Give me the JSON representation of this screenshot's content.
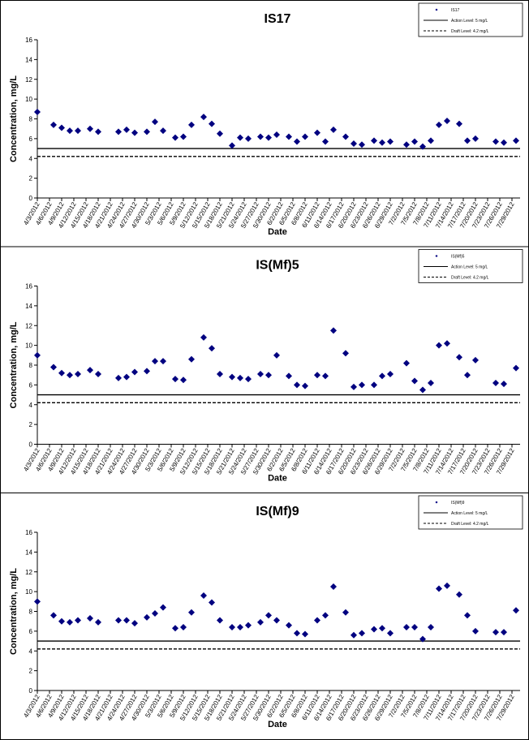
{
  "chart_data": [
    {
      "type": "scatter",
      "title": "IS17",
      "y_label": "Concentration, mg/L",
      "x_label": "Date",
      "xlim": [
        "4/3/2012",
        "7/31/2012"
      ],
      "xticks": [
        "4/3/2012",
        "4/6/2012",
        "4/9/2012",
        "4/12/2012",
        "4/15/2012",
        "4/18/2012",
        "4/21/2012",
        "4/24/2012",
        "4/27/2012",
        "4/30/2012",
        "5/3/2012",
        "5/6/2012",
        "5/9/2012",
        "5/12/2012",
        "5/15/2012",
        "5/18/2012",
        "5/21/2012",
        "5/24/2012",
        "5/27/2012",
        "5/30/2012",
        "6/2/2012",
        "6/5/2012",
        "6/8/2012",
        "6/11/2012",
        "6/14/2012",
        "6/17/2012",
        "6/20/2012",
        "6/23/2012",
        "6/26/2012",
        "6/29/2012",
        "7/2/2012",
        "7/5/2012",
        "7/8/2012",
        "7/11/2012",
        "7/14/2012",
        "7/17/2012",
        "7/20/2012",
        "7/23/2012",
        "7/26/2012",
        "7/29/2012"
      ],
      "ylim": [
        0,
        16
      ],
      "yticks": [
        0,
        2,
        4,
        6,
        8,
        10,
        12,
        14,
        16
      ],
      "grid": false,
      "x": [
        "4/3/2012",
        "4/7/2012",
        "4/9/2012",
        "4/11/2012",
        "4/13/2012",
        "4/16/2012",
        "4/18/2012",
        "4/23/2012",
        "4/25/2012",
        "4/27/2012",
        "4/30/2012",
        "5/2/2012",
        "5/4/2012",
        "5/7/2012",
        "5/9/2012",
        "5/11/2012",
        "5/14/2012",
        "5/16/2012",
        "5/18/2012",
        "5/21/2012",
        "5/23/2012",
        "5/25/2012",
        "5/28/2012",
        "5/30/2012",
        "6/1/2012",
        "6/4/2012",
        "6/6/2012",
        "6/8/2012",
        "6/11/2012",
        "6/13/2012",
        "6/15/2012",
        "6/18/2012",
        "6/20/2012",
        "6/22/2012",
        "6/25/2012",
        "6/27/2012",
        "6/29/2012",
        "7/3/2012",
        "7/5/2012",
        "7/7/2012",
        "7/9/2012",
        "7/11/2012",
        "7/13/2012",
        "7/16/2012",
        "7/18/2012",
        "7/20/2012",
        "7/25/2012",
        "7/27/2012",
        "7/30/2012"
      ],
      "series": [
        {
          "name": "IS17",
          "color": "#000080",
          "values": [
            8.7,
            7.4,
            7.1,
            6.8,
            6.8,
            7.0,
            6.7,
            6.7,
            6.9,
            6.6,
            6.7,
            7.7,
            6.8,
            6.1,
            6.2,
            7.4,
            8.2,
            7.5,
            6.5,
            5.3,
            6.1,
            6.0,
            6.2,
            6.1,
            6.4,
            6.2,
            5.7,
            6.2,
            6.6,
            5.7,
            6.9,
            6.2,
            5.5,
            5.4,
            5.8,
            5.6,
            5.7,
            5.4,
            5.7,
            5.2,
            5.8,
            7.4,
            7.8,
            7.5,
            5.8,
            6.0,
            5.7,
            5.6,
            5.8
          ]
        }
      ],
      "hlines": [
        {
          "name": "Action Level: 5 mg/L",
          "value": 5,
          "style": "solid",
          "color": "#000000"
        },
        {
          "name": "Draft Level: 4.2 mg/L",
          "value": 4.2,
          "style": "dashed",
          "color": "#000000"
        }
      ]
    },
    {
      "type": "scatter",
      "title": "IS(Mf)5",
      "y_label": "Concentration, mg/L",
      "x_label": "Date",
      "xlim": [
        "4/3/2012",
        "7/31/2012"
      ],
      "xticks": [
        "4/3/2012",
        "4/6/2012",
        "4/9/2012",
        "4/12/2012",
        "4/15/2012",
        "4/18/2012",
        "4/21/2012",
        "4/24/2012",
        "4/27/2012",
        "4/30/2012",
        "5/3/2012",
        "5/6/2012",
        "5/9/2012",
        "5/12/2012",
        "5/15/2012",
        "5/18/2012",
        "5/21/2012",
        "5/24/2012",
        "5/27/2012",
        "5/30/2012",
        "6/2/2012",
        "6/5/2012",
        "6/8/2012",
        "6/11/2012",
        "6/14/2012",
        "6/17/2012",
        "6/20/2012",
        "6/23/2012",
        "6/26/2012",
        "6/29/2012",
        "7/2/2012",
        "7/5/2012",
        "7/8/2012",
        "7/11/2012",
        "7/14/2012",
        "7/17/2012",
        "7/20/2012",
        "7/23/2012",
        "7/26/2012",
        "7/29/2012"
      ],
      "ylim": [
        0,
        16
      ],
      "yticks": [
        0,
        2,
        4,
        6,
        8,
        10,
        12,
        14,
        16
      ],
      "grid": false,
      "x": [
        "4/3/2012",
        "4/7/2012",
        "4/9/2012",
        "4/11/2012",
        "4/13/2012",
        "4/16/2012",
        "4/18/2012",
        "4/23/2012",
        "4/25/2012",
        "4/27/2012",
        "4/30/2012",
        "5/2/2012",
        "5/4/2012",
        "5/7/2012",
        "5/9/2012",
        "5/11/2012",
        "5/14/2012",
        "5/16/2012",
        "5/18/2012",
        "5/21/2012",
        "5/23/2012",
        "5/25/2012",
        "5/28/2012",
        "5/30/2012",
        "6/1/2012",
        "6/4/2012",
        "6/6/2012",
        "6/8/2012",
        "6/11/2012",
        "6/13/2012",
        "6/15/2012",
        "6/18/2012",
        "6/20/2012",
        "6/22/2012",
        "6/25/2012",
        "6/27/2012",
        "6/29/2012",
        "7/3/2012",
        "7/5/2012",
        "7/7/2012",
        "7/9/2012",
        "7/11/2012",
        "7/13/2012",
        "7/16/2012",
        "7/18/2012",
        "7/20/2012",
        "7/25/2012",
        "7/27/2012",
        "7/30/2012"
      ],
      "series": [
        {
          "name": "IS(Mf)5",
          "color": "#000080",
          "values": [
            9.0,
            7.8,
            7.2,
            7.0,
            7.1,
            7.5,
            7.1,
            6.7,
            6.8,
            7.3,
            7.4,
            8.4,
            8.4,
            6.6,
            6.5,
            8.6,
            10.8,
            9.7,
            7.1,
            6.8,
            6.7,
            6.6,
            7.1,
            7.0,
            9.0,
            6.9,
            6.0,
            5.9,
            7.0,
            6.9,
            11.5,
            9.2,
            5.8,
            6.0,
            6.0,
            6.9,
            7.1,
            8.2,
            6.4,
            5.5,
            6.2,
            10.0,
            10.2,
            8.8,
            7.0,
            8.5,
            6.2,
            6.1,
            7.7
          ]
        }
      ],
      "hlines": [
        {
          "name": "Action Level: 5 mg/L",
          "value": 5,
          "style": "solid",
          "color": "#000000"
        },
        {
          "name": "Draft Level: 4.2 mg/L",
          "value": 4.2,
          "style": "dashed",
          "color": "#000000"
        }
      ]
    },
    {
      "type": "scatter",
      "title": "IS(Mf)9",
      "y_label": "Concentration, mg/L",
      "x_label": "Date",
      "xlim": [
        "4/3/2012",
        "7/31/2012"
      ],
      "xticks": [
        "4/3/2012",
        "4/6/2012",
        "4/9/2012",
        "4/12/2012",
        "4/15/2012",
        "4/18/2012",
        "4/21/2012",
        "4/24/2012",
        "4/27/2012",
        "4/30/2012",
        "5/3/2012",
        "5/6/2012",
        "5/9/2012",
        "5/12/2012",
        "5/15/2012",
        "5/18/2012",
        "5/21/2012",
        "5/24/2012",
        "5/27/2012",
        "5/30/2012",
        "6/2/2012",
        "6/5/2012",
        "6/8/2012",
        "6/11/2012",
        "6/14/2012",
        "6/17/2012",
        "6/20/2012",
        "6/23/2012",
        "6/26/2012",
        "6/29/2012",
        "7/2/2012",
        "7/5/2012",
        "7/8/2012",
        "7/11/2012",
        "7/14/2012",
        "7/17/2012",
        "7/20/2012",
        "7/23/2012",
        "7/26/2012",
        "7/29/2012"
      ],
      "ylim": [
        0,
        16
      ],
      "yticks": [
        0,
        2,
        4,
        6,
        8,
        10,
        12,
        14,
        16
      ],
      "grid": false,
      "x": [
        "4/3/2012",
        "4/7/2012",
        "4/9/2012",
        "4/11/2012",
        "4/13/2012",
        "4/16/2012",
        "4/18/2012",
        "4/23/2012",
        "4/25/2012",
        "4/27/2012",
        "4/30/2012",
        "5/2/2012",
        "5/4/2012",
        "5/7/2012",
        "5/9/2012",
        "5/11/2012",
        "5/14/2012",
        "5/16/2012",
        "5/18/2012",
        "5/21/2012",
        "5/23/2012",
        "5/25/2012",
        "5/28/2012",
        "5/30/2012",
        "6/1/2012",
        "6/4/2012",
        "6/6/2012",
        "6/8/2012",
        "6/11/2012",
        "6/13/2012",
        "6/15/2012",
        "6/18/2012",
        "6/20/2012",
        "6/22/2012",
        "6/25/2012",
        "6/27/2012",
        "6/29/2012",
        "7/3/2012",
        "7/5/2012",
        "7/7/2012",
        "7/9/2012",
        "7/11/2012",
        "7/13/2012",
        "7/16/2012",
        "7/18/2012",
        "7/20/2012",
        "7/25/2012",
        "7/27/2012",
        "7/30/2012"
      ],
      "series": [
        {
          "name": "IS(Mf)9",
          "color": "#000080",
          "values": [
            9.0,
            7.6,
            7.0,
            6.9,
            7.1,
            7.3,
            6.9,
            7.1,
            7.1,
            6.8,
            7.4,
            7.8,
            8.4,
            6.3,
            6.4,
            7.9,
            9.6,
            8.9,
            7.1,
            6.4,
            6.4,
            6.6,
            6.9,
            7.6,
            7.1,
            6.6,
            5.8,
            5.7,
            7.1,
            7.6,
            10.5,
            7.9,
            5.6,
            5.8,
            6.2,
            6.3,
            5.8,
            6.4,
            6.4,
            5.2,
            6.4,
            10.3,
            10.6,
            9.7,
            7.6,
            6.0,
            5.9,
            5.9,
            8.1
          ]
        }
      ],
      "hlines": [
        {
          "name": "Action Level: 5 mg/L",
          "value": 5,
          "style": "solid",
          "color": "#000000"
        },
        {
          "name": "Draft Level: 4.2 mg/L",
          "value": 4.2,
          "style": "dashed",
          "color": "#000000"
        }
      ]
    }
  ]
}
